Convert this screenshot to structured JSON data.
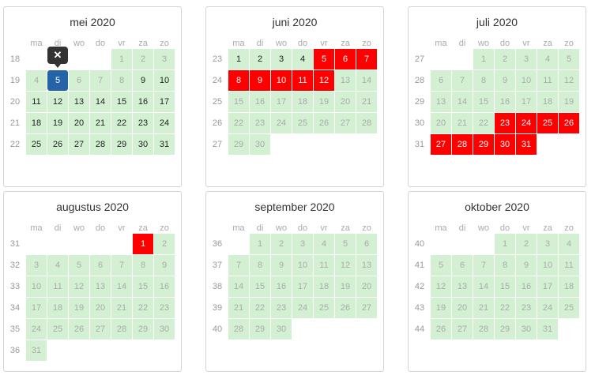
{
  "weekdays": [
    "ma",
    "di",
    "wo",
    "do",
    "vr",
    "za",
    "zo"
  ],
  "colors": {
    "available": "#d3f0d3",
    "booked": "#ff0000",
    "selected": "#2563a8",
    "popover": "#333333"
  },
  "popover": {
    "icon": "close-icon",
    "glyph": "✕"
  },
  "months": [
    {
      "title": "mei 2020",
      "start_weekday": 4,
      "days": 31,
      "first_week": 18,
      "past": [
        1,
        2,
        3,
        4,
        6,
        7,
        8
      ],
      "booked": [],
      "selected": [
        5
      ]
    },
    {
      "title": "juni 2020",
      "start_weekday": 0,
      "days": 30,
      "first_week": 23,
      "past": [
        13,
        14,
        15,
        16,
        17,
        18,
        19,
        20,
        21,
        22,
        23,
        24,
        25,
        26,
        27,
        28,
        29,
        30
      ],
      "booked": [
        5,
        6,
        7,
        8,
        9,
        10,
        11,
        12
      ],
      "selected": []
    },
    {
      "title": "juli 2020",
      "start_weekday": 2,
      "days": 31,
      "first_week": 27,
      "past": [
        1,
        2,
        3,
        4,
        5,
        6,
        7,
        8,
        9,
        10,
        11,
        12,
        13,
        14,
        15,
        16,
        17,
        18,
        19,
        20,
        21,
        22
      ],
      "booked": [
        23,
        24,
        25,
        26,
        27,
        28,
        29,
        30,
        31
      ],
      "selected": []
    },
    {
      "title": "augustus 2020",
      "start_weekday": 5,
      "days": 31,
      "first_week": 31,
      "past": [
        2,
        3,
        4,
        5,
        6,
        7,
        8,
        9,
        10,
        11,
        12,
        13,
        14,
        15,
        16,
        17,
        18,
        19,
        20,
        21,
        22,
        23,
        24,
        25,
        26,
        27,
        28,
        29,
        30,
        31
      ],
      "booked": [
        1
      ],
      "selected": []
    },
    {
      "title": "september 2020",
      "start_weekday": 1,
      "days": 30,
      "first_week": 36,
      "past": [
        1,
        2,
        3,
        4,
        5,
        6,
        7,
        8,
        9,
        10,
        11,
        12,
        13,
        14,
        15,
        16,
        17,
        18,
        19,
        20,
        21,
        22,
        23,
        24,
        25,
        26,
        27,
        28,
        29,
        30
      ],
      "booked": [],
      "selected": []
    },
    {
      "title": "oktober 2020",
      "start_weekday": 3,
      "days": 31,
      "first_week": 40,
      "past": [
        1,
        2,
        3,
        4,
        5,
        6,
        7,
        8,
        9,
        10,
        11,
        12,
        13,
        14,
        15,
        16,
        17,
        18,
        19,
        20,
        21,
        22,
        23,
        24,
        25,
        26,
        27,
        28,
        29,
        30,
        31
      ],
      "booked": [],
      "selected": []
    }
  ]
}
